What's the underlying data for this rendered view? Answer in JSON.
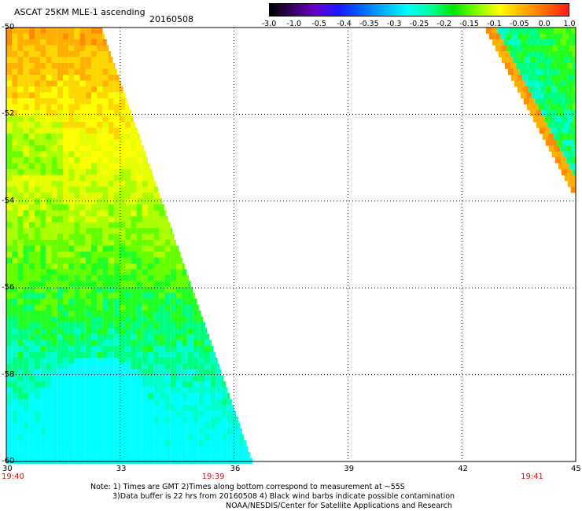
{
  "header": {
    "title": "ASCAT 25KM MLE-1 ascending",
    "date": "20160508"
  },
  "colorbar": {
    "colors": [
      "#000000",
      "#3a0066",
      "#6a00c8",
      "#1a1aff",
      "#0066ff",
      "#00b4ff",
      "#00ffff",
      "#00ff99",
      "#00e600",
      "#80ff00",
      "#ffff00",
      "#ffb000",
      "#ff6a00",
      "#ff1a1a"
    ],
    "labels": [
      "-3.0",
      "-1.0",
      "-0.5",
      "-0.4",
      "-0.35",
      "-0.3",
      "-0.25",
      "-0.2",
      "-0.15",
      "-0.1",
      "-0.05",
      "0.0",
      "1.0"
    ]
  },
  "map": {
    "lon_ticks": [
      "30",
      "33",
      "36",
      "39",
      "42",
      "45"
    ],
    "lat_ticks": [
      "-50",
      "-52",
      "-54",
      "-56",
      "-58",
      "-60"
    ],
    "lon_range": [
      30,
      45
    ],
    "lat_range": [
      -50,
      -60
    ],
    "grid": true,
    "times": [
      {
        "label": "19:40",
        "lon": 30
      },
      {
        "label": "19:39",
        "lon": 35.4
      },
      {
        "label": "19:41",
        "lon": 43.8
      }
    ]
  },
  "notes": {
    "line1": "Note: 1) Times are GMT 2)Times along bottom correspond to measurement at ~55S",
    "line2": "3)Data buffer is 22 hrs from 20160508 4) Black wind barbs indicate possible contamination",
    "line3": "NOAA/NESDIS/Center for Satellite Applications and Research"
  }
}
